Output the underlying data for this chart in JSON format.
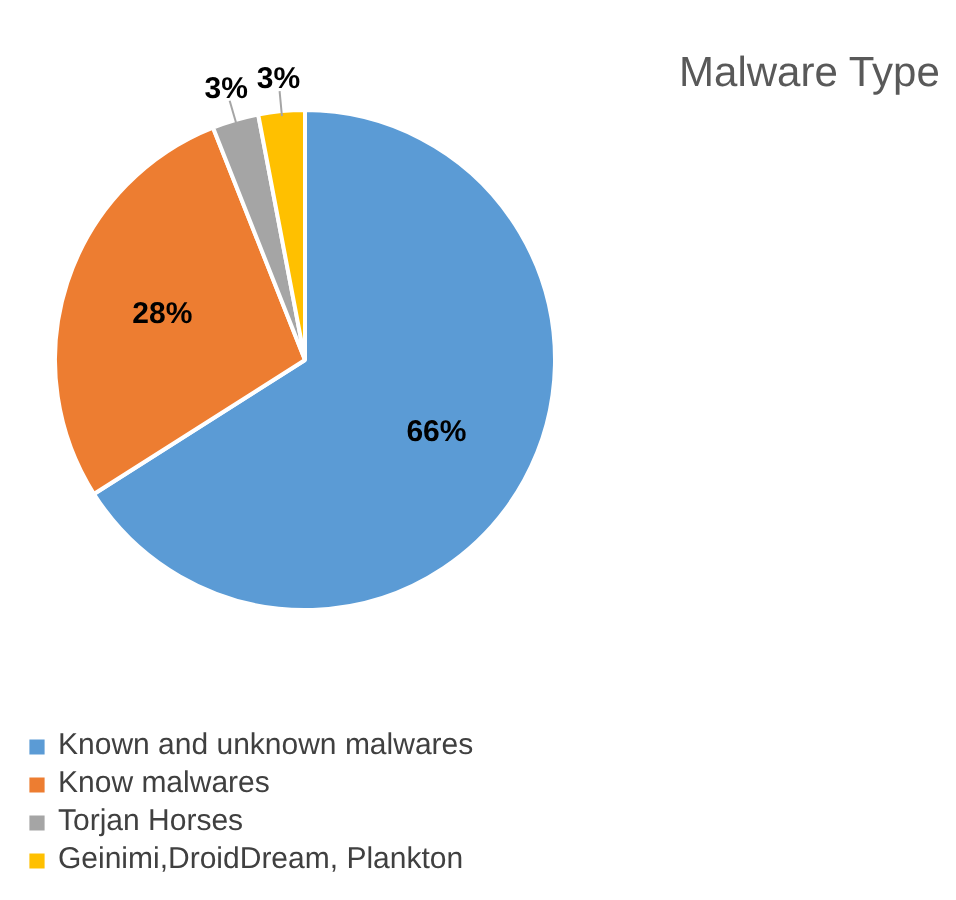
{
  "chart_data": {
    "type": "pie",
    "title": "Malware Type",
    "categories": [
      "Known and unknown malwares",
      "Know malwares",
      "Torjan Horses",
      "Geinimi,DroidDream, Plankton"
    ],
    "values": [
      66,
      28,
      3,
      3
    ],
    "colors": [
      "#5b9bd5",
      "#ed7d31",
      "#a5a5a5",
      "#ffc000"
    ],
    "value_labels": [
      "66%",
      "28%",
      "3%",
      "3%"
    ],
    "legend": "bottom"
  }
}
